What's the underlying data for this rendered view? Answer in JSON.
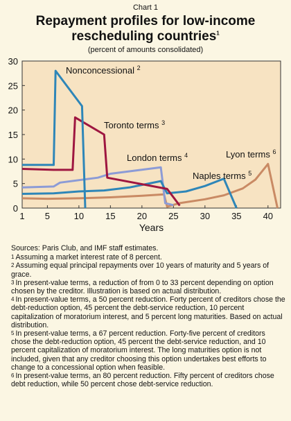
{
  "header": {
    "chart_label": "Chart 1",
    "title_line1": "Repayment profiles for low-income",
    "title_line2": "rescheduling countries",
    "title_note": "1",
    "subtitle": "(percent of amounts consolidated)"
  },
  "chart_data": {
    "type": "line",
    "xlabel": "Years",
    "ylabel": "",
    "xlim": [
      1,
      42
    ],
    "ylim": [
      0,
      30
    ],
    "x_ticks": [
      1,
      5,
      10,
      15,
      20,
      25,
      30,
      35,
      40
    ],
    "y_ticks": [
      0,
      5,
      10,
      15,
      20,
      25,
      30
    ],
    "series": [
      {
        "name": "Nonconcessional",
        "note": "2",
        "color": "#2e86b8",
        "points": [
          [
            1,
            8.8
          ],
          [
            6,
            8.8
          ],
          [
            6.3,
            28
          ],
          [
            10.5,
            20.8
          ],
          [
            11,
            0
          ]
        ]
      },
      {
        "name": "Toronto terms",
        "note": "3",
        "color": "#9e1640",
        "points": [
          [
            1,
            8.0
          ],
          [
            6,
            7.8
          ],
          [
            9,
            7.8
          ],
          [
            9.4,
            18.5
          ],
          [
            14,
            15
          ],
          [
            14.5,
            6.2
          ],
          [
            24,
            3.9
          ],
          [
            26,
            0.5
          ]
        ]
      },
      {
        "name": "London terms",
        "note": "4",
        "color": "#8c9bd6",
        "points": [
          [
            1,
            4.2
          ],
          [
            6,
            4.4
          ],
          [
            7,
            5.2
          ],
          [
            13,
            6.2
          ],
          [
            15,
            7.0
          ],
          [
            23,
            8.3
          ],
          [
            23.7,
            1.0
          ],
          [
            25,
            0.6
          ]
        ]
      },
      {
        "name": "Naples terms",
        "note": "5",
        "color": "#2e86b8",
        "points": [
          [
            1,
            2.9
          ],
          [
            6,
            3.0
          ],
          [
            10,
            3.4
          ],
          [
            14,
            3.6
          ],
          [
            18,
            4.2
          ],
          [
            23,
            5.5
          ],
          [
            24,
            3.0
          ],
          [
            27,
            3.4
          ],
          [
            30,
            4.5
          ],
          [
            33,
            6.0
          ],
          [
            35,
            0
          ]
        ]
      },
      {
        "name": "Lyon terms",
        "note": "6",
        "color": "#c98a64",
        "points": [
          [
            1,
            2.0
          ],
          [
            5,
            1.9
          ],
          [
            10,
            2.0
          ],
          [
            15,
            2.2
          ],
          [
            20,
            2.5
          ],
          [
            23.5,
            2.8
          ],
          [
            24,
            0.3
          ],
          [
            26,
            1.0
          ],
          [
            30,
            1.8
          ],
          [
            33,
            2.6
          ],
          [
            36,
            4.0
          ],
          [
            38,
            5.8
          ],
          [
            40,
            9.0
          ],
          [
            41.5,
            0
          ]
        ]
      }
    ]
  },
  "notes": {
    "sources": "Sources: Paris Club, and IMF staff estimates.",
    "footnotes": [
      {
        "n": "1",
        "text": "Assuming a market interest rate of 8 percent."
      },
      {
        "n": "2",
        "text": "Assuming equal principal repayments over 10 years of maturity and 5 years of grace."
      },
      {
        "n": "3",
        "text": "In present-value terms, a reduction of from 0 to 33 percent depending on option chosen by the creditor. Illustration is based on actual distribution."
      },
      {
        "n": "4",
        "text": "In present-value terms, a 50 percent reduction. Forty percent of creditors chose the debt-reduction option, 45 percent the debt-service reduction, 10 percent capitalization of moratorium interest, and 5 percent long maturities. Based on actual distribution."
      },
      {
        "n": "5",
        "text": "In present-value terms, a 67 percent reduction. Forty-five percent of creditors chose the debt-reduction option, 45 percent the debt-service reduction, and 10 percent capitalization of moratorium interest. The long maturities option is not included, given that any creditor choosing this option undertakes best efforts to change to a concessional option when feasible."
      },
      {
        "n": "6",
        "text": "In present-value terms, an 80 percent reduction. Fifty percent of creditors chose debt reduction, while 50 percent chose debt-service reduction."
      }
    ]
  }
}
